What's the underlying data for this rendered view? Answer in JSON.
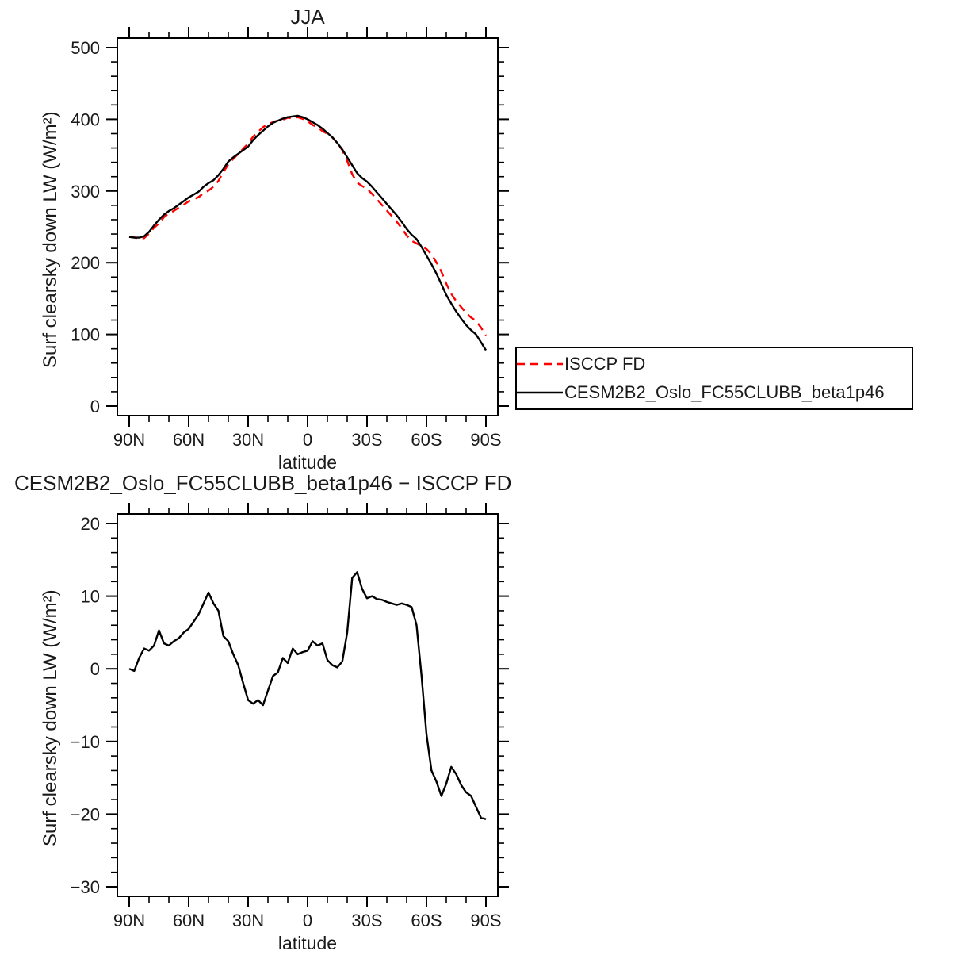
{
  "figure": {
    "background": "#ffffff",
    "text_color": "#1a1a1a",
    "frame_color": "#000000"
  },
  "chart_data": [
    {
      "type": "line",
      "title": "JJA",
      "xlabel": "latitude",
      "ylabel": "Surf clearsky down LW (W/m²)",
      "xlim": [
        90,
        -90
      ],
      "ylim": [
        0,
        500
      ],
      "xticks": [
        {
          "v": 90,
          "label": "90N"
        },
        {
          "v": 60,
          "label": "60N"
        },
        {
          "v": 30,
          "label": "30N"
        },
        {
          "v": 0,
          "label": "0"
        },
        {
          "v": -30,
          "label": "30S"
        },
        {
          "v": -60,
          "label": "60S"
        },
        {
          "v": -90,
          "label": "90S"
        }
      ],
      "xminor_step": 10,
      "yticks": [
        0,
        100,
        200,
        300,
        400,
        500
      ],
      "yminor_step": 20,
      "grid": false,
      "legend_position": "outside-right-below",
      "x": [
        90,
        87.5,
        85,
        82.5,
        80,
        77.5,
        75,
        72.5,
        70,
        67.5,
        65,
        62.5,
        60,
        57.5,
        55,
        52.5,
        50,
        47.5,
        45,
        42.5,
        40,
        37.5,
        35,
        32.5,
        30,
        27.5,
        25,
        22.5,
        20,
        17.5,
        15,
        12.5,
        10,
        7.5,
        5,
        2.5,
        0,
        -2.5,
        -5,
        -7.5,
        -10,
        -12.5,
        -15,
        -17.5,
        -20,
        -22.5,
        -25,
        -27.5,
        -30,
        -32.5,
        -35,
        -37.5,
        -40,
        -42.5,
        -45,
        -47.5,
        -50,
        -52.5,
        -55,
        -57.5,
        -60,
        -62.5,
        -65,
        -67.5,
        -70,
        -72.5,
        -75,
        -77.5,
        -80,
        -82.5,
        -85,
        -87.5,
        -90
      ],
      "series": [
        {
          "name": "ISCCP FD",
          "color": "#ff0000",
          "dash": [
            10,
            7
          ],
          "values": [
            236,
            235.3,
            233.5,
            234.2,
            240.5,
            248.8,
            254.7,
            263.5,
            268.8,
            272.2,
            276.8,
            281,
            285.5,
            288.5,
            291.5,
            297,
            300.5,
            306,
            314,
            326.5,
            337.2,
            345,
            351.5,
            359,
            366.3,
            375.8,
            382.3,
            389,
            393,
            396,
            398.5,
            399.5,
            402.2,
            401.2,
            403,
            400.7,
            397.5,
            392.2,
            388.8,
            383.5,
            379.8,
            374.5,
            366.8,
            357,
            342,
            323.5,
            311.7,
            307,
            303.3,
            296,
            288.4,
            280.5,
            272.8,
            265,
            257.2,
            248,
            238.2,
            230.5,
            227,
            223,
            219,
            212,
            200.5,
            187.5,
            170.8,
            156.5,
            146.5,
            138,
            130,
            123.5,
            119,
            109.5,
            98.7
          ]
        },
        {
          "name": "CESM2B2_Oslo_FC55CLUBB_beta1p46",
          "color": "#000000",
          "dash": null,
          "values": [
            236,
            235,
            235,
            237,
            243,
            252,
            260,
            267,
            272,
            276,
            281,
            286,
            291,
            295,
            299,
            306,
            311,
            315,
            322,
            331,
            341,
            347,
            352,
            357,
            362,
            371,
            378,
            384,
            390,
            395,
            398,
            401,
            403,
            404,
            405,
            403,
            400,
            396,
            392,
            387,
            381,
            375,
            367,
            358,
            347,
            336,
            325,
            318,
            313,
            306,
            298,
            290,
            282,
            274,
            266,
            257,
            247,
            239,
            233,
            222,
            210,
            198,
            185,
            170,
            155,
            143,
            132,
            122,
            113,
            106,
            100,
            89,
            78
          ]
        }
      ]
    },
    {
      "type": "line",
      "title": "CESM2B2_Oslo_FC55CLUBB_beta1p46 − ISCCP FD",
      "xlabel": "latitude",
      "ylabel": "Surf clearsky down LW (W/m²)",
      "xlim": [
        90,
        -90
      ],
      "ylim": [
        -30,
        20
      ],
      "xticks": [
        {
          "v": 90,
          "label": "90N"
        },
        {
          "v": 60,
          "label": "60N"
        },
        {
          "v": 30,
          "label": "30N"
        },
        {
          "v": 0,
          "label": "0"
        },
        {
          "v": -30,
          "label": "30S"
        },
        {
          "v": -60,
          "label": "60S"
        },
        {
          "v": -90,
          "label": "90S"
        }
      ],
      "xminor_step": 10,
      "yticks": [
        -30,
        -20,
        -10,
        0,
        10,
        20
      ],
      "yminor_step": 2,
      "grid": false,
      "x": [
        90,
        87.5,
        85,
        82.5,
        80,
        77.5,
        75,
        72.5,
        70,
        67.5,
        65,
        62.5,
        60,
        57.5,
        55,
        52.5,
        50,
        47.5,
        45,
        42.5,
        40,
        37.5,
        35,
        32.5,
        30,
        27.5,
        25,
        22.5,
        20,
        17.5,
        15,
        12.5,
        10,
        7.5,
        5,
        2.5,
        0,
        -2.5,
        -5,
        -7.5,
        -10,
        -12.5,
        -15,
        -17.5,
        -20,
        -22.5,
        -25,
        -27.5,
        -30,
        -32.5,
        -35,
        -37.5,
        -40,
        -42.5,
        -45,
        -47.5,
        -50,
        -52.5,
        -55,
        -57.5,
        -60,
        -62.5,
        -65,
        -67.5,
        -70,
        -72.5,
        -75,
        -77.5,
        -80,
        -82.5,
        -85,
        -87.5,
        -90
      ],
      "series": [
        {
          "name": "CESM2B2_Oslo_FC55CLUBB_beta1p46 − ISCCP FD",
          "color": "#000000",
          "dash": null,
          "values": [
            0,
            -0.3,
            1.5,
            2.8,
            2.5,
            3.2,
            5.3,
            3.5,
            3.2,
            3.8,
            4.2,
            5,
            5.5,
            6.5,
            7.5,
            9,
            10.5,
            9,
            8,
            4.5,
            3.8,
            2,
            0.5,
            -2,
            -4.3,
            -4.8,
            -4.3,
            -5,
            -3,
            -1,
            -0.5,
            1.5,
            0.8,
            2.8,
            2,
            2.3,
            2.5,
            3.8,
            3.2,
            3.5,
            1.2,
            0.5,
            0.2,
            1,
            5,
            12.5,
            13.3,
            11,
            9.7,
            10,
            9.6,
            9.5,
            9.2,
            9,
            8.8,
            9,
            8.8,
            8.5,
            6,
            -1,
            -9,
            -14,
            -15.5,
            -17.5,
            -15.8,
            -13.5,
            -14.5,
            -16,
            -17,
            -17.5,
            -19,
            -20.5,
            -20.7
          ]
        }
      ]
    }
  ]
}
